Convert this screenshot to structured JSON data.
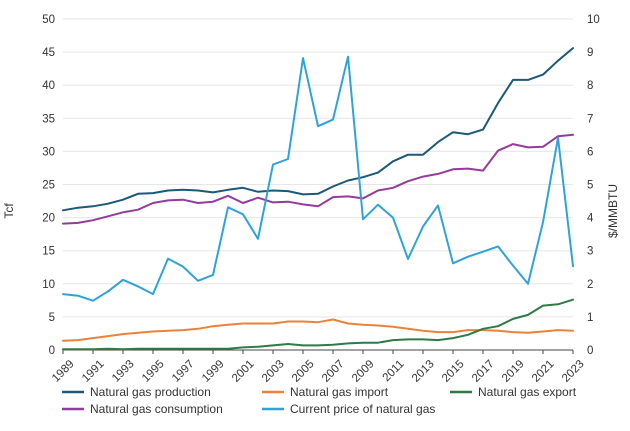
{
  "chart_data": {
    "type": "line",
    "title": "",
    "xlabel": "",
    "ylabel": "Tcf",
    "y2label": "$/MMBTU",
    "ylim": [
      0,
      50
    ],
    "y2lim": [
      0,
      10
    ],
    "yticks": [
      "0",
      "5",
      "10",
      "15",
      "20",
      "25",
      "30",
      "35",
      "40",
      "45",
      "50"
    ],
    "y2ticks": [
      "0",
      "1",
      "2",
      "3",
      "4",
      "5",
      "6",
      "7",
      "8",
      "9",
      "10"
    ],
    "x": [
      1989,
      1990,
      1991,
      1992,
      1993,
      1994,
      1995,
      1996,
      1997,
      1998,
      1999,
      2000,
      2001,
      2002,
      2003,
      2004,
      2005,
      2006,
      2007,
      2008,
      2009,
      2010,
      2011,
      2012,
      2013,
      2014,
      2015,
      2016,
      2017,
      2018,
      2019,
      2020,
      2021,
      2022,
      2023
    ],
    "xticks": [
      "1989",
      "1991",
      "1993",
      "1995",
      "1997",
      "1999",
      "2001",
      "2003",
      "2005",
      "2007",
      "2009",
      "2011",
      "2013",
      "2015",
      "2017",
      "2019",
      "2021",
      "2023"
    ],
    "grid": true,
    "legend_position": "bottom",
    "series": [
      {
        "name": "Natural gas production",
        "axis": "left",
        "color": "#1c5878",
        "values": [
          21.1,
          21.5,
          21.7,
          22.1,
          22.7,
          23.6,
          23.7,
          24.1,
          24.2,
          24.1,
          23.8,
          24.2,
          24.5,
          23.9,
          24.1,
          24.0,
          23.5,
          23.6,
          24.7,
          25.6,
          26.1,
          26.8,
          28.5,
          29.5,
          29.5,
          31.4,
          32.9,
          32.6,
          33.3,
          37.3,
          40.8,
          40.8,
          41.6,
          43.7,
          45.6
        ]
      },
      {
        "name": "Natural gas import",
        "axis": "left",
        "color": "#e9833a",
        "values": [
          1.4,
          1.5,
          1.8,
          2.1,
          2.4,
          2.6,
          2.8,
          2.9,
          3.0,
          3.2,
          3.6,
          3.8,
          4.0,
          4.0,
          4.0,
          4.3,
          4.3,
          4.2,
          4.6,
          4.0,
          3.8,
          3.7,
          3.5,
          3.2,
          2.9,
          2.7,
          2.7,
          3.0,
          3.0,
          2.9,
          2.7,
          2.6,
          2.8,
          3.0,
          2.9
        ]
      },
      {
        "name": "Natural gas export",
        "axis": "left",
        "color": "#2f7a47",
        "values": [
          0.1,
          0.1,
          0.1,
          0.2,
          0.1,
          0.2,
          0.2,
          0.2,
          0.2,
          0.2,
          0.2,
          0.2,
          0.4,
          0.5,
          0.7,
          0.9,
          0.7,
          0.7,
          0.8,
          1.0,
          1.1,
          1.1,
          1.5,
          1.6,
          1.6,
          1.5,
          1.8,
          2.3,
          3.2,
          3.6,
          4.7,
          5.3,
          6.7,
          6.9,
          7.6
        ]
      },
      {
        "name": "Natural gas consumption",
        "axis": "left",
        "color": "#953b9a",
        "values": [
          19.1,
          19.2,
          19.6,
          20.2,
          20.8,
          21.2,
          22.2,
          22.6,
          22.7,
          22.2,
          22.4,
          23.3,
          22.2,
          23.0,
          22.3,
          22.4,
          22.0,
          21.7,
          23.1,
          23.2,
          22.9,
          24.1,
          24.5,
          25.5,
          26.2,
          26.6,
          27.3,
          27.4,
          27.1,
          30.1,
          31.1,
          30.6,
          30.7,
          32.3,
          32.5
        ]
      },
      {
        "name": "Current price of natural gas",
        "axis": "right",
        "color": "#2fa3d9",
        "values": [
          1.69,
          1.64,
          1.49,
          1.77,
          2.12,
          1.92,
          1.69,
          2.76,
          2.52,
          2.09,
          2.27,
          4.31,
          4.1,
          3.36,
          5.6,
          5.77,
          8.82,
          6.76,
          6.96,
          8.86,
          3.95,
          4.39,
          4.0,
          2.75,
          3.73,
          4.37,
          2.62,
          2.82,
          2.97,
          3.13,
          2.55,
          2.0,
          3.86,
          6.41,
          2.53
        ]
      }
    ]
  }
}
